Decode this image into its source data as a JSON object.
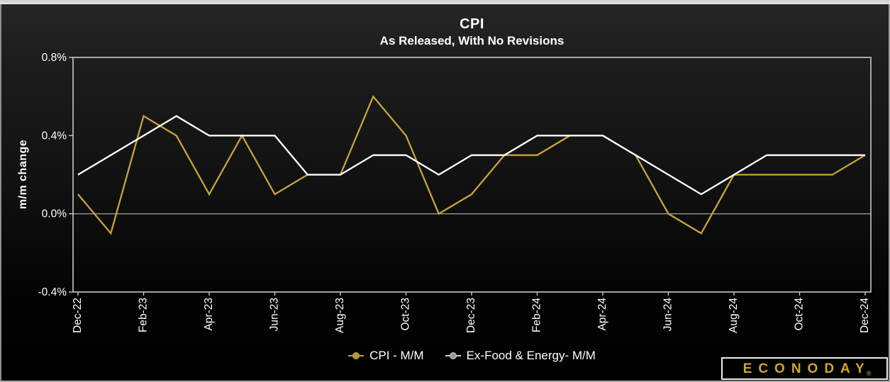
{
  "chart": {
    "title": "CPI",
    "subtitle": "As Released, With No Revisions"
  },
  "axes": {
    "y_label": "m/m change"
  },
  "chart_data": {
    "type": "line",
    "title": "CPI",
    "subtitle": "As Released, With No Revisions",
    "xlabel": "",
    "ylabel": "m/m change",
    "ylim": [
      -0.4,
      0.8
    ],
    "y_ticks": [
      0.8,
      0.4,
      0.0,
      -0.4
    ],
    "y_tick_labels": [
      "0.8%",
      "0.4%",
      "0.0%",
      "-0.4%"
    ],
    "x": [
      "Dec-22",
      "Jan-23",
      "Feb-23",
      "Mar-23",
      "Apr-23",
      "May-23",
      "Jun-23",
      "Jul-23",
      "Aug-23",
      "Sep-23",
      "Oct-23",
      "Nov-23",
      "Dec-23",
      "Jan-24",
      "Feb-24",
      "Mar-24",
      "Apr-24",
      "May-24",
      "Jun-24",
      "Jul-24",
      "Aug-24",
      "Sep-24",
      "Oct-24",
      "Nov-24",
      "Dec-24"
    ],
    "x_tick_every": 2,
    "x_tick_labels": [
      "Dec-22",
      "Feb-23",
      "Apr-23",
      "Jun-23",
      "Aug-23",
      "Oct-23",
      "Dec-23",
      "Feb-24",
      "Apr-24",
      "Jun-24",
      "Aug-24",
      "Oct-24",
      "Dec-24"
    ],
    "grid": "single horizontal line at 0.0% only",
    "legend_position": "bottom-center",
    "series": [
      {
        "name": "CPI - M/M",
        "color": "#C9A43B",
        "values": [
          0.1,
          -0.1,
          0.5,
          0.4,
          0.1,
          0.4,
          0.1,
          0.2,
          0.2,
          0.6,
          0.4,
          0.0,
          0.1,
          0.3,
          0.3,
          0.4,
          0.4,
          0.3,
          0.0,
          -0.1,
          0.2,
          0.2,
          0.2,
          0.2,
          0.3
        ]
      },
      {
        "name": "Ex-Food & Energy- M/M",
        "color": "#FFFFFF",
        "values": [
          0.2,
          0.3,
          0.4,
          0.5,
          0.4,
          0.4,
          0.4,
          0.2,
          0.2,
          0.3,
          0.3,
          0.2,
          0.3,
          0.3,
          0.4,
          0.4,
          0.4,
          0.3,
          0.2,
          0.1,
          0.2,
          0.3,
          0.3,
          0.3,
          0.3
        ]
      }
    ]
  },
  "legend": {
    "items": [
      {
        "label": "CPI - M/M",
        "line_color": "#C9A43B",
        "dot_color": "#b3953a"
      },
      {
        "label": "Ex-Food & Energy- M/M",
        "line_color": "#cccccc",
        "dot_color": "#999999"
      }
    ]
  },
  "logo": {
    "text": "ECONODAY",
    "registered": "®"
  },
  "colors": {
    "background_top": "#262626",
    "background_bottom": "#000000",
    "plot_border": "#c8c8c8",
    "zero_line": "#b4b4b4",
    "text": "#ffffff",
    "cpi_line": "#C9A43B",
    "core_line": "#FFFFFF",
    "logo_gold": "#d2a62e"
  }
}
